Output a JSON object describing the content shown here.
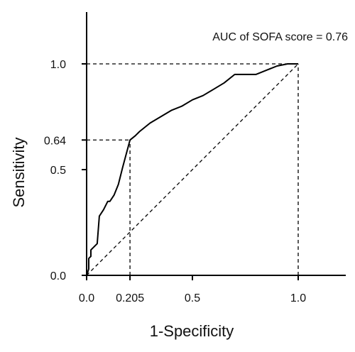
{
  "chart_data": {
    "type": "line",
    "xlabel": "1-Specificity",
    "ylabel": "Sensitivity",
    "xlim": [
      0,
      1.2
    ],
    "ylim": [
      0,
      1.2
    ],
    "x_ticks": [
      {
        "value": 0.0,
        "label": "0.0"
      },
      {
        "value": 0.205,
        "label": "0.205"
      },
      {
        "value": 0.5,
        "label": "0.5"
      },
      {
        "value": 1.0,
        "label": "1.0"
      }
    ],
    "y_ticks": [
      {
        "value": 0.0,
        "label": "0.0"
      },
      {
        "value": 0.5,
        "label": "0.5"
      },
      {
        "value": 0.64,
        "label": "0.64"
      },
      {
        "value": 1.0,
        "label": "1.0"
      }
    ],
    "annotation": "AUC of SOFA score = 0.76",
    "series": [
      {
        "style": "solid",
        "x": [
          0.0,
          0.01,
          0.01,
          0.02,
          0.02,
          0.03,
          0.05,
          0.06,
          0.08,
          0.1,
          0.11,
          0.13,
          0.15,
          0.17,
          0.205,
          0.23,
          0.25,
          0.3,
          0.35,
          0.4,
          0.45,
          0.5,
          0.55,
          0.6,
          0.65,
          0.7,
          0.75,
          0.8,
          0.85,
          0.9,
          0.95,
          1.0
        ],
        "y": [
          0.0,
          0.03,
          0.08,
          0.09,
          0.12,
          0.13,
          0.15,
          0.28,
          0.31,
          0.35,
          0.35,
          0.38,
          0.43,
          0.51,
          0.64,
          0.66,
          0.68,
          0.72,
          0.75,
          0.78,
          0.8,
          0.83,
          0.85,
          0.88,
          0.91,
          0.95,
          0.95,
          0.95,
          0.97,
          0.99,
          1.0,
          1.0
        ]
      },
      {
        "style": "dashed",
        "x": [
          0.0,
          1.0
        ],
        "y": [
          0.0,
          1.0
        ]
      }
    ],
    "reference_lines": [
      {
        "from": [
          0.0,
          1.0
        ],
        "to": [
          1.0,
          1.0
        ]
      },
      {
        "from": [
          1.0,
          0.0
        ],
        "to": [
          1.0,
          1.0
        ]
      },
      {
        "from": [
          0.0,
          0.64
        ],
        "to": [
          0.205,
          0.64
        ]
      },
      {
        "from": [
          0.205,
          0.0
        ],
        "to": [
          0.205,
          0.64
        ]
      }
    ],
    "grid": false,
    "axes": "left-and-bottom"
  }
}
